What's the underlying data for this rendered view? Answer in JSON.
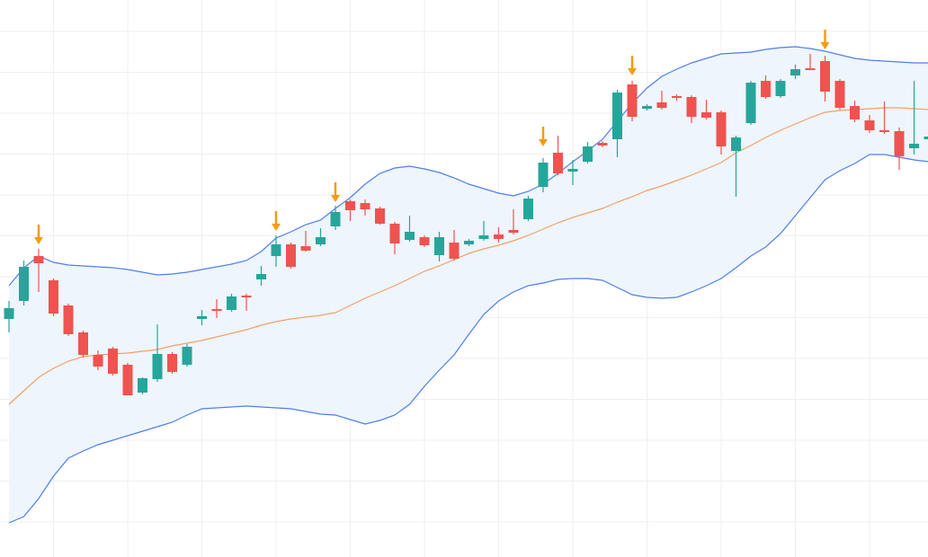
{
  "chart_data": {
    "type": "candlestick",
    "categories": [
      null,
      null,
      null,
      null,
      null,
      null,
      null,
      null,
      null,
      null,
      null,
      null,
      null,
      null,
      null,
      null,
      null,
      null,
      null,
      null,
      null,
      null,
      null,
      null,
      null,
      null,
      null,
      null,
      null,
      null,
      null,
      null,
      null,
      null,
      null,
      null,
      null,
      null,
      null,
      null,
      null,
      null,
      null,
      null,
      null,
      null,
      null,
      null,
      null,
      null,
      null,
      null,
      null,
      null,
      null,
      null,
      null,
      null,
      null,
      null,
      null,
      null,
      null
    ],
    "open": [
      265,
      285,
      335,
      308,
      280,
      250,
      225,
      232,
      214,
      183,
      198,
      226,
      214,
      265,
      276,
      275,
      291,
      309,
      335,
      348,
      346,
      348,
      368,
      396,
      394,
      388,
      371,
      353,
      356,
      336,
      350,
      348,
      354,
      359,
      364,
      376,
      412,
      450,
      429,
      440,
      461,
      465,
      526,
      499,
      506,
      513,
      512,
      495,
      495,
      452,
      483,
      530,
      513,
      536,
      544,
      552,
      530,
      502,
      486,
      475,
      474,
      455,
      465
    ],
    "high": [
      285,
      330,
      343,
      310,
      282,
      252,
      230,
      234,
      216,
      200,
      259,
      228,
      237,
      275,
      287,
      293,
      293,
      324,
      358,
      350,
      363,
      366,
      391,
      398,
      398,
      390,
      373,
      380,
      358,
      362,
      364,
      354,
      374,
      367,
      387,
      402,
      444,
      469,
      442,
      462,
      463,
      520,
      530,
      504,
      519,
      515,
      514,
      509,
      497,
      469,
      530,
      536,
      532,
      548,
      560,
      558,
      532,
      508,
      492,
      507,
      478,
      530,
      490
    ],
    "low": [
      250,
      280,
      295,
      268,
      246,
      222,
      208,
      202,
      180,
      181,
      195,
      204,
      212,
      258,
      266,
      273,
      274,
      302,
      323,
      321,
      340,
      346,
      364,
      374,
      380,
      370,
      337,
      351,
      345,
      329,
      330,
      346,
      352,
      350,
      359,
      374,
      406,
      425,
      414,
      438,
      456,
      445,
      485,
      497,
      498,
      508,
      483,
      487,
      448,
      401,
      481,
      510,
      511,
      532,
      542,
      507,
      498,
      484,
      472,
      471,
      431,
      448,
      460
    ],
    "close": [
      277,
      323,
      327,
      271,
      248,
      225,
      212,
      204,
      180,
      199,
      226,
      206,
      234,
      268,
      274,
      290,
      289,
      315,
      348,
      323,
      341,
      356,
      384,
      386,
      387,
      371,
      349,
      362,
      347,
      356,
      332,
      352,
      358,
      354,
      361,
      399,
      439,
      427,
      432,
      457,
      458,
      517,
      490,
      502,
      500,
      511,
      490,
      489,
      457,
      467,
      528,
      512,
      530,
      543,
      542,
      518,
      500,
      487,
      475,
      473,
      446,
      460,
      468
    ],
    "up_color": "#26a69a",
    "down_color": "#ef5350",
    "series": [
      {
        "color": "#4f7fea",
        "values": [
          302,
          322,
          335,
          328,
          325,
          324,
          323,
          322,
          320,
          317,
          314,
          315,
          317,
          320,
          323,
          326,
          330,
          340,
          355,
          362,
          370,
          375,
          388,
          400,
          415,
          427,
          433,
          435,
          432,
          428,
          422,
          415,
          410,
          405,
          402,
          407,
          415,
          427,
          440,
          452,
          465,
          485,
          505,
          522,
          535,
          543,
          550,
          555,
          560,
          561,
          562,
          565,
          567,
          568,
          566,
          563,
          559,
          555,
          553,
          552,
          551,
          550,
          550
        ]
      },
      {
        "color": "#f4a068",
        "values": [
          170,
          185,
          200,
          210,
          218,
          223,
          225,
          226,
          227,
          229,
          231,
          235,
          238,
          241,
          245,
          249,
          253,
          258,
          262,
          265,
          267,
          269,
          272,
          280,
          288,
          295,
          302,
          310,
          318,
          324,
          331,
          338,
          343,
          347,
          352,
          358,
          365,
          372,
          378,
          383,
          388,
          395,
          401,
          408,
          413,
          419,
          425,
          432,
          439,
          450,
          458,
          467,
          475,
          482,
          489,
          495,
          497,
          498,
          499,
          500,
          500,
          499,
          498
        ]
      },
      {
        "color": "#4f7fea",
        "values": [
          38,
          45,
          65,
          90,
          110,
          118,
          125,
          130,
          135,
          140,
          145,
          150,
          158,
          165,
          166,
          167,
          168,
          167,
          166,
          165,
          162,
          159,
          158,
          153,
          148,
          152,
          158,
          170,
          190,
          208,
          225,
          248,
          270,
          285,
          295,
          302,
          305,
          309,
          310,
          310,
          308,
          300,
          292,
          289,
          288,
          289,
          295,
          302,
          310,
          322,
          335,
          345,
          360,
          380,
          400,
          420,
          430,
          438,
          448,
          448,
          445,
          442,
          440
        ]
      }
    ],
    "band_fill": "#eef5fc",
    "signals": {
      "color": "#f39c12",
      "values": [
        null,
        null,
        348,
        null,
        null,
        null,
        null,
        null,
        null,
        null,
        null,
        null,
        null,
        null,
        null,
        null,
        null,
        null,
        363,
        null,
        null,
        null,
        395,
        null,
        null,
        null,
        null,
        null,
        null,
        null,
        null,
        null,
        null,
        null,
        null,
        null,
        457,
        null,
        null,
        null,
        null,
        null,
        536,
        null,
        null,
        null,
        null,
        null,
        null,
        null,
        null,
        null,
        null,
        null,
        null,
        565,
        null,
        null,
        null,
        null,
        null,
        null,
        null
      ]
    },
    "ylim": [
      0,
      620
    ],
    "yticks": [
      39,
      84.5,
      130,
      175.5,
      221,
      266.5,
      312,
      357.5,
      403,
      448.5,
      494,
      539.5,
      585
    ],
    "grid": true
  }
}
